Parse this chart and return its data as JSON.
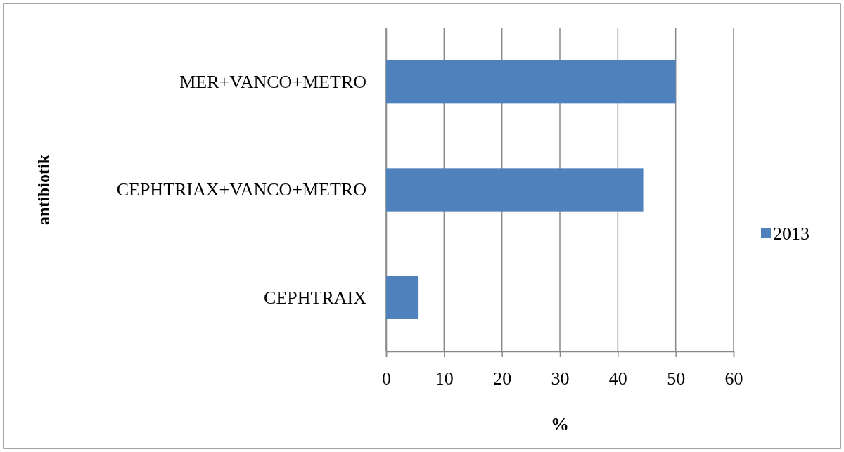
{
  "chart_data": {
    "type": "bar",
    "orientation": "horizontal",
    "xlabel": "%",
    "ylabel": "antibiotik",
    "categories": [
      "MER+VANCO+METRO",
      "CEPHTRIAX+VANCO+METRO",
      "CEPHTRAIX"
    ],
    "series": [
      {
        "name": "2013",
        "color": "#4f81bd",
        "values": [
          50,
          44.4,
          5.6
        ]
      }
    ],
    "xlim": [
      0,
      60
    ],
    "xticks": [
      0,
      10,
      20,
      30,
      40,
      50,
      60
    ],
    "grid": "x",
    "legend": "right"
  }
}
